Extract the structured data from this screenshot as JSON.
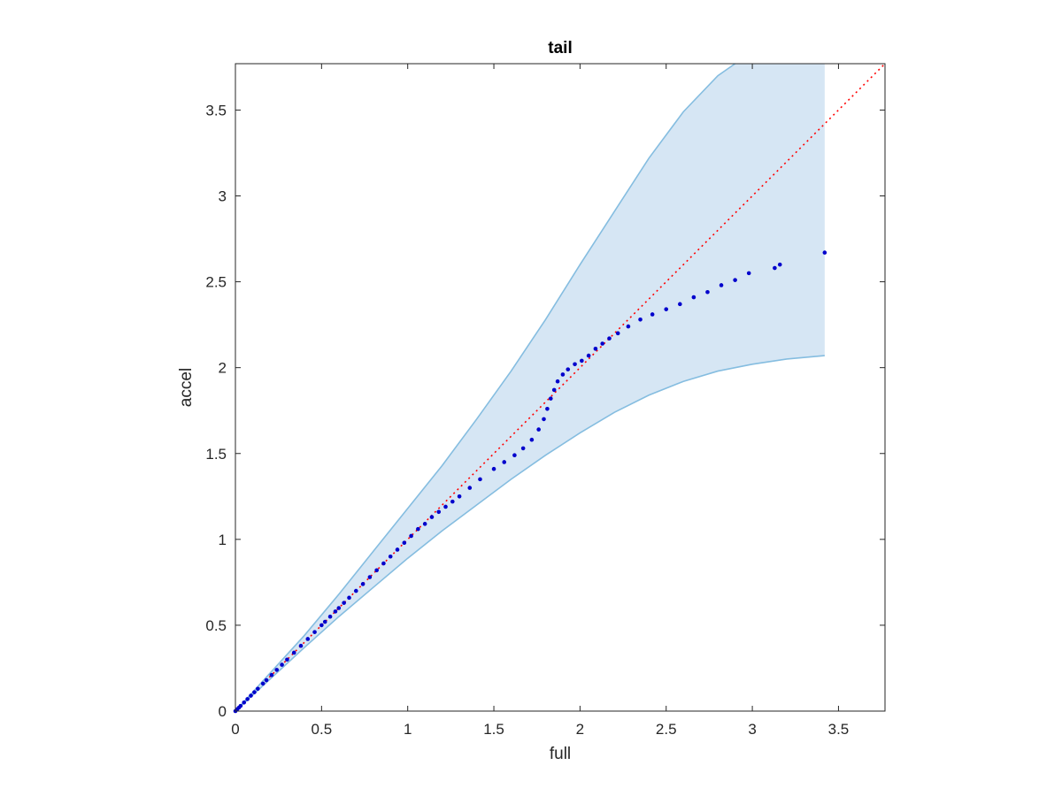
{
  "chart_data": {
    "type": "scatter",
    "title": "tail",
    "xlabel": "full",
    "ylabel": "accel",
    "xlim": [
      0,
      3.77
    ],
    "ylim": [
      0,
      3.77
    ],
    "xticks": [
      0,
      0.5,
      1,
      1.5,
      2,
      2.5,
      3,
      3.5
    ],
    "yticks": [
      0,
      0.5,
      1,
      1.5,
      2,
      2.5,
      3,
      3.5
    ],
    "xtick_labels": [
      "0",
      "0.5",
      "1",
      "1.5",
      "2",
      "2.5",
      "3",
      "3.5"
    ],
    "ytick_labels": [
      "0",
      "0.5",
      "1",
      "1.5",
      "2",
      "2.5",
      "3",
      "3.5"
    ],
    "grid": false,
    "box": true,
    "reference_line": {
      "style": "dotted",
      "color": "#ff0000",
      "x": [
        0,
        3.77
      ],
      "y": [
        0,
        3.77
      ]
    },
    "envelope": {
      "color_fill": "#d6e6f4",
      "color_edge": "#85bde0",
      "upper": [
        [
          0,
          0
        ],
        [
          0.2,
          0.22
        ],
        [
          0.4,
          0.44
        ],
        [
          0.6,
          0.68
        ],
        [
          0.8,
          0.93
        ],
        [
          1.0,
          1.18
        ],
        [
          1.2,
          1.43
        ],
        [
          1.4,
          1.7
        ],
        [
          1.6,
          1.98
        ],
        [
          1.8,
          2.28
        ],
        [
          2.0,
          2.6
        ],
        [
          2.2,
          2.91
        ],
        [
          2.4,
          3.22
        ],
        [
          2.6,
          3.49
        ],
        [
          2.8,
          3.7
        ],
        [
          2.9,
          3.77
        ]
      ],
      "upper_cap": [
        3.42,
        3.77
      ],
      "lower": [
        [
          0,
          0
        ],
        [
          0.2,
          0.185
        ],
        [
          0.4,
          0.37
        ],
        [
          0.6,
          0.55
        ],
        [
          0.8,
          0.72
        ],
        [
          1.0,
          0.89
        ],
        [
          1.2,
          1.05
        ],
        [
          1.4,
          1.2
        ],
        [
          1.6,
          1.35
        ],
        [
          1.8,
          1.49
        ],
        [
          2.0,
          1.62
        ],
        [
          2.2,
          1.74
        ],
        [
          2.4,
          1.84
        ],
        [
          2.6,
          1.92
        ],
        [
          2.8,
          1.98
        ],
        [
          3.0,
          2.02
        ],
        [
          3.2,
          2.05
        ],
        [
          3.42,
          2.07
        ]
      ]
    },
    "series": [
      {
        "color": "#0000cc",
        "marker": "dot",
        "points": [
          [
            0.0,
            0.0
          ],
          [
            0.01,
            0.01
          ],
          [
            0.02,
            0.02
          ],
          [
            0.03,
            0.03
          ],
          [
            0.05,
            0.05
          ],
          [
            0.07,
            0.07
          ],
          [
            0.09,
            0.09
          ],
          [
            0.11,
            0.11
          ],
          [
            0.13,
            0.13
          ],
          [
            0.16,
            0.16
          ],
          [
            0.18,
            0.18
          ],
          [
            0.21,
            0.21
          ],
          [
            0.24,
            0.24
          ],
          [
            0.27,
            0.27
          ],
          [
            0.3,
            0.3
          ],
          [
            0.34,
            0.34
          ],
          [
            0.38,
            0.38
          ],
          [
            0.42,
            0.42
          ],
          [
            0.46,
            0.46
          ],
          [
            0.5,
            0.5
          ],
          [
            0.52,
            0.52
          ],
          [
            0.55,
            0.55
          ],
          [
            0.58,
            0.58
          ],
          [
            0.6,
            0.6
          ],
          [
            0.63,
            0.63
          ],
          [
            0.66,
            0.66
          ],
          [
            0.7,
            0.7
          ],
          [
            0.74,
            0.74
          ],
          [
            0.78,
            0.78
          ],
          [
            0.82,
            0.82
          ],
          [
            0.86,
            0.86
          ],
          [
            0.9,
            0.9
          ],
          [
            0.94,
            0.94
          ],
          [
            0.98,
            0.98
          ],
          [
            1.02,
            1.02
          ],
          [
            1.06,
            1.06
          ],
          [
            1.1,
            1.09
          ],
          [
            1.14,
            1.13
          ],
          [
            1.18,
            1.16
          ],
          [
            1.22,
            1.19
          ],
          [
            1.26,
            1.22
          ],
          [
            1.3,
            1.25
          ],
          [
            1.36,
            1.3
          ],
          [
            1.42,
            1.35
          ],
          [
            1.5,
            1.41
          ],
          [
            1.56,
            1.45
          ],
          [
            1.62,
            1.49
          ],
          [
            1.67,
            1.53
          ],
          [
            1.72,
            1.58
          ],
          [
            1.76,
            1.64
          ],
          [
            1.79,
            1.7
          ],
          [
            1.81,
            1.76
          ],
          [
            1.83,
            1.82
          ],
          [
            1.85,
            1.87
          ],
          [
            1.87,
            1.92
          ],
          [
            1.9,
            1.96
          ],
          [
            1.93,
            1.99
          ],
          [
            1.97,
            2.02
          ],
          [
            2.01,
            2.04
          ],
          [
            2.05,
            2.07
          ],
          [
            2.09,
            2.11
          ],
          [
            2.13,
            2.14
          ],
          [
            2.17,
            2.17
          ],
          [
            2.22,
            2.2
          ],
          [
            2.28,
            2.24
          ],
          [
            2.35,
            2.28
          ],
          [
            2.42,
            2.31
          ],
          [
            2.5,
            2.34
          ],
          [
            2.58,
            2.37
          ],
          [
            2.66,
            2.41
          ],
          [
            2.74,
            2.44
          ],
          [
            2.82,
            2.48
          ],
          [
            2.9,
            2.51
          ],
          [
            2.98,
            2.55
          ],
          [
            3.13,
            2.58
          ],
          [
            3.16,
            2.6
          ],
          [
            3.42,
            2.67
          ]
        ]
      }
    ]
  }
}
